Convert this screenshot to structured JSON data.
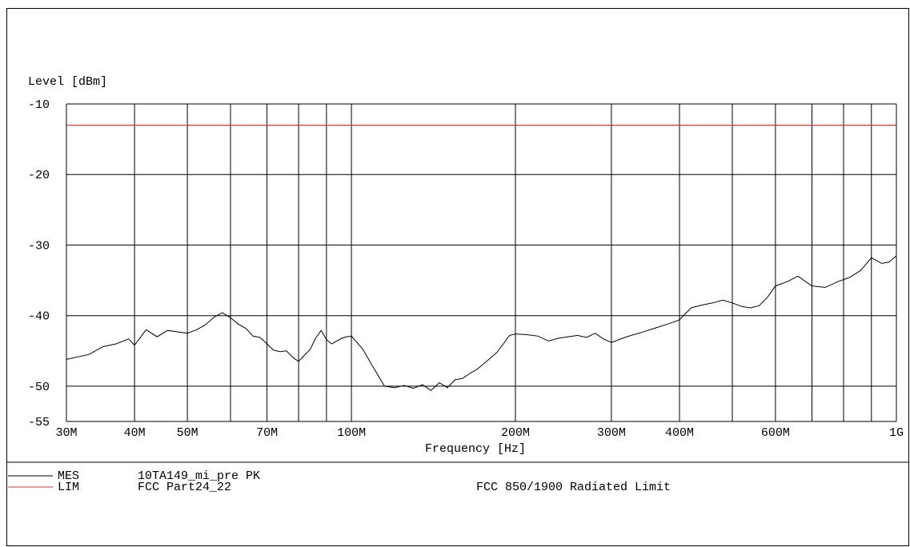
{
  "chart_data": {
    "type": "line",
    "ylabel": "Level [dBm]",
    "xlabel": "Frequency [Hz]",
    "x_scale": "log",
    "xlim": [
      30000000,
      1000000000
    ],
    "ylim": [
      -55,
      -10
    ],
    "y_ticks": [
      {
        "value": -10,
        "label": "-10"
      },
      {
        "value": -20,
        "label": "-20"
      },
      {
        "value": -30,
        "label": "-30"
      },
      {
        "value": -40,
        "label": "-40"
      },
      {
        "value": -50,
        "label": "-50"
      },
      {
        "value": -55,
        "label": "-55"
      }
    ],
    "x_ticks": [
      {
        "value": 30000000,
        "label": "30M"
      },
      {
        "value": 40000000,
        "label": "40M"
      },
      {
        "value": 50000000,
        "label": "50M"
      },
      {
        "value": 70000000,
        "label": "70M"
      },
      {
        "value": 100000000,
        "label": "100M"
      },
      {
        "value": 200000000,
        "label": "200M"
      },
      {
        "value": 300000000,
        "label": "300M"
      },
      {
        "value": 400000000,
        "label": "400M"
      },
      {
        "value": 600000000,
        "label": "600M"
      },
      {
        "value": 1000000000,
        "label": "1G"
      }
    ],
    "x_gridlines": [
      30000000,
      40000000,
      50000000,
      60000000,
      70000000,
      80000000,
      90000000,
      100000000,
      200000000,
      300000000,
      400000000,
      500000000,
      600000000,
      700000000,
      800000000,
      900000000,
      1000000000
    ],
    "y_gridlines": [
      -10,
      -20,
      -30,
      -40,
      -50,
      -55
    ],
    "grid": true,
    "series": [
      {
        "name": "MES",
        "color": "#000000",
        "x": [
          30000000,
          33000000,
          35000000,
          37000000,
          39000000,
          40000000,
          42000000,
          44000000,
          46000000,
          48000000,
          50000000,
          52000000,
          54000000,
          56000000,
          58000000,
          60000000,
          62000000,
          64000000,
          66000000,
          68000000,
          70000000,
          72000000,
          74000000,
          76000000,
          78000000,
          80000000,
          82000000,
          84000000,
          86000000,
          88000000,
          90000000,
          92000000,
          94000000,
          96000000,
          98000000,
          100000000,
          105000000,
          110000000,
          115000000,
          120000000,
          125000000,
          130000000,
          135000000,
          140000000,
          145000000,
          150000000,
          155000000,
          160000000,
          165000000,
          170000000,
          175000000,
          180000000,
          185000000,
          190000000,
          195000000,
          200000000,
          210000000,
          220000000,
          230000000,
          240000000,
          250000000,
          260000000,
          270000000,
          280000000,
          290000000,
          300000000,
          320000000,
          340000000,
          360000000,
          380000000,
          400000000,
          420000000,
          440000000,
          460000000,
          480000000,
          500000000,
          520000000,
          540000000,
          560000000,
          580000000,
          600000000,
          630000000,
          660000000,
          700000000,
          740000000,
          780000000,
          820000000,
          860000000,
          900000000,
          940000000,
          970000000,
          1000000000
        ],
        "values": [
          -46.2,
          -45.5,
          -44.4,
          -44.0,
          -43.3,
          -44.2,
          -42.0,
          -43.0,
          -42.1,
          -42.3,
          -42.5,
          -42.0,
          -41.3,
          -40.2,
          -39.6,
          -40.3,
          -41.2,
          -41.8,
          -42.9,
          -43.1,
          -44.0,
          -44.9,
          -45.1,
          -45.0,
          -45.9,
          -46.5,
          -45.6,
          -44.8,
          -43.2,
          -42.1,
          -43.4,
          -44.0,
          -43.6,
          -43.2,
          -43.0,
          -42.9,
          -44.8,
          -47.5,
          -50.0,
          -50.2,
          -49.9,
          -50.3,
          -49.8,
          -50.6,
          -49.5,
          -50.2,
          -49.1,
          -48.9,
          -48.2,
          -47.6,
          -46.8,
          -46.0,
          -45.2,
          -44.0,
          -42.8,
          -42.6,
          -42.7,
          -42.9,
          -43.6,
          -43.2,
          -43.0,
          -42.8,
          -43.1,
          -42.5,
          -43.3,
          -43.8,
          -43.0,
          -42.4,
          -41.8,
          -41.2,
          -40.6,
          -38.9,
          -38.5,
          -38.2,
          -37.8,
          -38.2,
          -38.7,
          -38.9,
          -38.6,
          -37.4,
          -35.8,
          -35.2,
          -34.4,
          -35.8,
          -36.0,
          -35.2,
          -34.6,
          -33.6,
          -31.8,
          -32.6,
          -32.4,
          -31.5
        ]
      },
      {
        "name": "LIM",
        "color": "#cc3333",
        "x": [
          30000000,
          1000000000
        ],
        "values": [
          -13.0,
          -13.0
        ]
      }
    ]
  },
  "legend": [
    {
      "tag": "MES",
      "name": "10TA149_mi_pre PK",
      "desc": "",
      "color": "#000000"
    },
    {
      "tag": "LIM",
      "name": "FCC Part24_22",
      "desc": "FCC 850/1900 Radiated Limit",
      "color": "#cc3333"
    }
  ]
}
